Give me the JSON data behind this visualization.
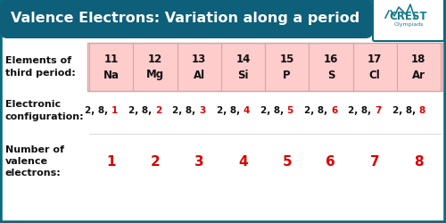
{
  "title": "Valence Electrons: Variation along a period",
  "title_bg": "#0e5f7a",
  "title_color": "#ffffff",
  "table_bg": "#ffcccc",
  "outer_bg": "#ffffff",
  "outer_border": "#0e6a80",
  "elements": [
    "11\nNa",
    "12\nMg",
    "13\nAl",
    "14\nSi",
    "15\nP",
    "16\nS",
    "17\nCl",
    "18\nAr"
  ],
  "configs_black": [
    "2, 8, ",
    "2, 8, ",
    "2, 8, ",
    "2, 8, ",
    "2, 8, ",
    "2, 8, ",
    "2, 8, ",
    "2, 8, "
  ],
  "configs_red": [
    "1",
    "2",
    "3",
    "4",
    "5",
    "6",
    "7",
    "8"
  ],
  "valence": [
    "1",
    "2",
    "3",
    "4",
    "5",
    "6",
    "7",
    "8"
  ],
  "row1_label": "Elements of\nthird period:",
  "row2_label": "Electronic\nconfiguration:",
  "row3_label": "Number of\nvalence\nelectrons:",
  "black_color": "#111111",
  "red_color": "#dd0000",
  "cell_border": "#ccaaaa",
  "crest_color": "#1a7a8a",
  "logo_bg": "#ffffff"
}
